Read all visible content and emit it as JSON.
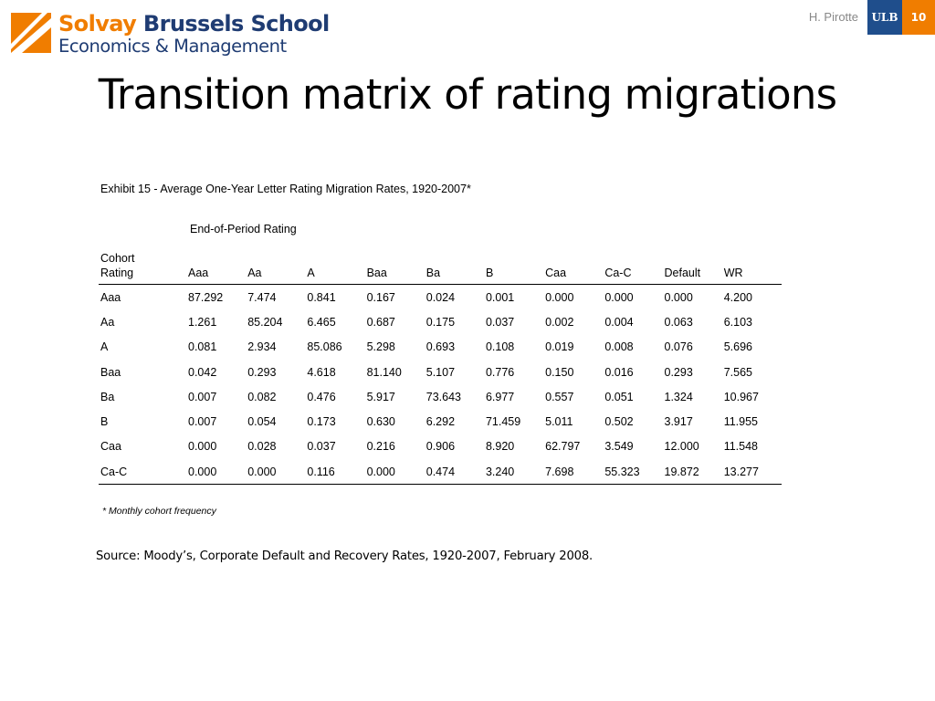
{
  "header": {
    "logo": {
      "line1_brand": "Solvay",
      "line1_rest": "Brussels School",
      "line2": "Economics & Management"
    },
    "author": "H. Pirotte",
    "badge_ulb": "ULB",
    "slide_number": "10"
  },
  "title": "Transition matrix of rating migrations",
  "exhibit_caption": "Exhibit 15 - Average One-Year Letter Rating Migration Rates, 1920-2007*",
  "end_of_period_label": "End-of-Period Rating",
  "table": {
    "row_header_line1": "Cohort",
    "row_header_line2": "Rating",
    "columns": [
      "Aaa",
      "Aa",
      "A",
      "Baa",
      "Ba",
      "B",
      "Caa",
      "Ca-C",
      "Default",
      "WR"
    ],
    "rows": [
      {
        "label": "Aaa",
        "values": [
          "87.292",
          "7.474",
          "0.841",
          "0.167",
          "0.024",
          "0.001",
          "0.000",
          "0.000",
          "0.000",
          "4.200"
        ]
      },
      {
        "label": "Aa",
        "values": [
          "1.261",
          "85.204",
          "6.465",
          "0.687",
          "0.175",
          "0.037",
          "0.002",
          "0.004",
          "0.063",
          "6.103"
        ]
      },
      {
        "label": "A",
        "values": [
          "0.081",
          "2.934",
          "85.086",
          "5.298",
          "0.693",
          "0.108",
          "0.019",
          "0.008",
          "0.076",
          "5.696"
        ]
      },
      {
        "label": "Baa",
        "values": [
          "0.042",
          "0.293",
          "4.618",
          "81.140",
          "5.107",
          "0.776",
          "0.150",
          "0.016",
          "0.293",
          "7.565"
        ]
      },
      {
        "label": "Ba",
        "values": [
          "0.007",
          "0.082",
          "0.476",
          "5.917",
          "73.643",
          "6.977",
          "0.557",
          "0.051",
          "1.324",
          "10.967"
        ]
      },
      {
        "label": "B",
        "values": [
          "0.007",
          "0.054",
          "0.173",
          "0.630",
          "6.292",
          "71.459",
          "5.011",
          "0.502",
          "3.917",
          "11.955"
        ]
      },
      {
        "label": "Caa",
        "values": [
          "0.000",
          "0.028",
          "0.037",
          "0.216",
          "0.906",
          "8.920",
          "62.797",
          "3.549",
          "12.000",
          "11.548"
        ]
      },
      {
        "label": "Ca-C",
        "values": [
          "0.000",
          "0.000",
          "0.116",
          "0.000",
          "0.474",
          "3.240",
          "7.698",
          "55.323",
          "19.872",
          "13.277"
        ]
      }
    ]
  },
  "footnote": "* Monthly cohort frequency",
  "source": "Source: Moody’s, Corporate Default and Recovery Rates, 1920-2007, February 2008.",
  "colors": {
    "brand_orange": "#f07d00",
    "brand_navy": "#1f3c73",
    "ulb_blue": "#1f4e8c"
  }
}
